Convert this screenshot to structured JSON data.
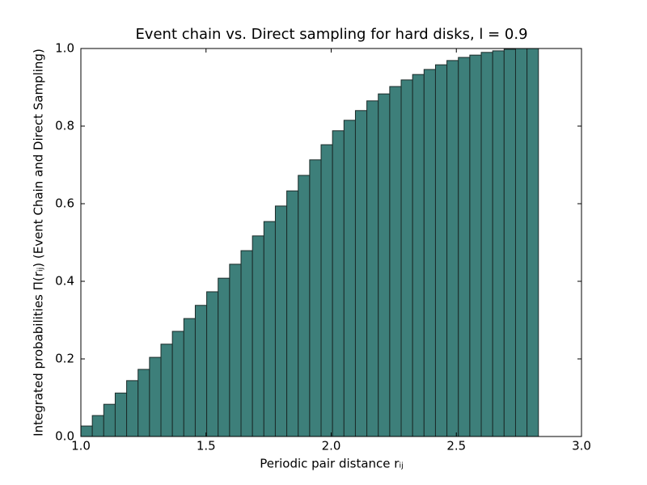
{
  "chart_data": {
    "type": "histogram",
    "title": "Event chain vs. Direct sampling for hard disks, l = 0.9",
    "xlabel": "Periodic pair distance rᵢⱼ",
    "ylabel": "Integrated probabilities Π(rᵢⱼ) (Event Chain and Direct Sampling)",
    "color": "#3d7f7a",
    "edgecolor": "#1a2a28",
    "bins": [
      1.0,
      1.0457,
      1.0914,
      1.1371,
      1.1828,
      1.2285,
      1.2742,
      1.3199,
      1.3656,
      1.4113,
      1.457,
      1.5027,
      1.5484,
      1.5941,
      1.6398,
      1.6855,
      1.7312,
      1.7769,
      1.8226,
      1.8683,
      1.914,
      1.9597,
      2.0054,
      2.0511,
      2.0968,
      2.1425,
      2.1882,
      2.2339,
      2.2796,
      2.3253,
      2.371,
      2.4167,
      2.4624,
      2.5081,
      2.5538,
      2.5995,
      2.6452,
      2.6909,
      2.7366,
      2.7823,
      2.828
    ],
    "values": [
      0.027,
      0.054,
      0.083,
      0.112,
      0.144,
      0.173,
      0.204,
      0.238,
      0.271,
      0.304,
      0.338,
      0.373,
      0.408,
      0.444,
      0.479,
      0.517,
      0.554,
      0.594,
      0.633,
      0.673,
      0.713,
      0.752,
      0.788,
      0.815,
      0.84,
      0.865,
      0.883,
      0.902,
      0.919,
      0.933,
      0.946,
      0.958,
      0.969,
      0.977,
      0.983,
      0.99,
      0.994,
      0.998,
      1.0,
      1.0
    ],
    "xlim": [
      1,
      3
    ],
    "xticks": [
      {
        "value": 1,
        "label": "1.0"
      },
      {
        "value": 1.5,
        "label": "1.5"
      },
      {
        "value": 2,
        "label": "2.0"
      },
      {
        "value": 2.5,
        "label": "2.5"
      },
      {
        "value": 3,
        "label": "3.0"
      }
    ],
    "ylim": [
      0,
      1
    ],
    "yticks": [
      {
        "value": 0,
        "label": "0.0"
      },
      0.2,
      0.4,
      0.6,
      0.8,
      {
        "value": 1,
        "label": "1.0"
      }
    ]
  }
}
